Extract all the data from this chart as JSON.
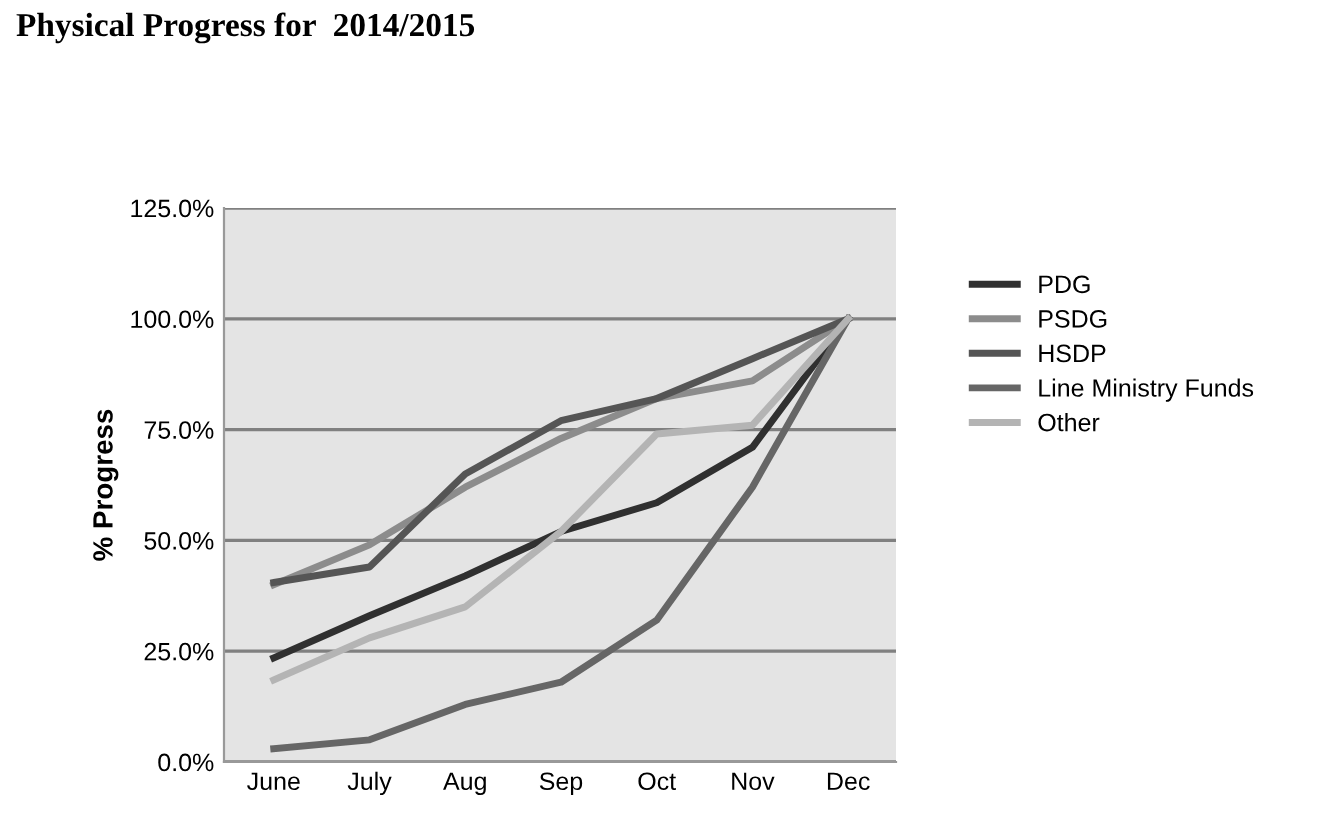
{
  "chart_data": {
    "type": "line",
    "title": "Physical Progress for  2014/2015",
    "ylabel": "% Progress",
    "categories": [
      "June",
      "July",
      "Aug",
      "Sep",
      "Oct",
      "Nov",
      "Dec"
    ],
    "series": [
      {
        "name": "PDG",
        "color": "#303030",
        "values": [
          23.5,
          33,
          42,
          52,
          58.5,
          71,
          100
        ]
      },
      {
        "name": "PSDG",
        "color": "#8c8c8c",
        "values": [
          40,
          49,
          62,
          73,
          82,
          86,
          100
        ]
      },
      {
        "name": "HSDP",
        "color": "#555555",
        "values": [
          40.5,
          44,
          65,
          77,
          82,
          91,
          100
        ]
      },
      {
        "name": "Line Ministry Funds",
        "color": "#666666",
        "values": [
          3,
          5,
          13,
          18,
          32,
          62,
          100
        ]
      },
      {
        "name": "Other",
        "color": "#b4b4b4",
        "values": [
          18.5,
          28,
          35,
          52,
          74,
          76,
          100
        ]
      }
    ],
    "ylim": [
      0,
      125
    ],
    "yticks": [
      {
        "value": 0,
        "label": "0.0%"
      },
      {
        "value": 25,
        "label": "25.0%"
      },
      {
        "value": 50,
        "label": "50.0%"
      },
      {
        "value": 75,
        "label": "75.0%"
      },
      {
        "value": 100,
        "label": "100.0%"
      },
      {
        "value": 125,
        "label": "125.0%"
      }
    ],
    "grid": "y",
    "legend": "right",
    "marker": "none",
    "line_style": "solid"
  }
}
